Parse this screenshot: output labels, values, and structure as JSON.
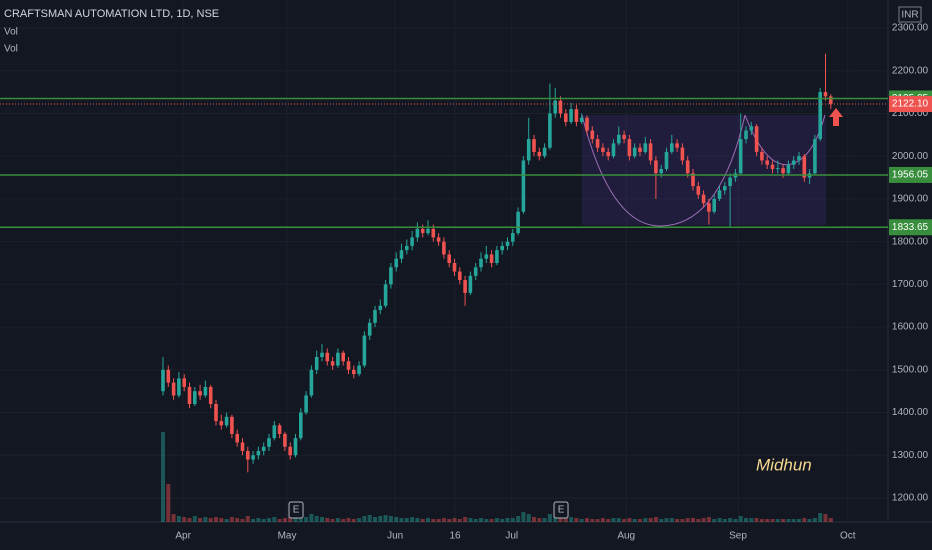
{
  "chart_data": {
    "type": "candlestick",
    "title": "CRAFTSMAN AUTOMATION LTD, 1D, NSE",
    "indicators": [
      "Vol",
      "Vol"
    ],
    "currency": "INR",
    "up_color": "#26a69a",
    "down_color": "#ef5350",
    "level_color": "#388e3c",
    "ylim": [
      1200,
      2300
    ],
    "yticks": [
      {
        "value": 1200,
        "label": "1200.00"
      },
      {
        "value": 1300,
        "label": "1300.00"
      },
      {
        "value": 1400,
        "label": "1400.00"
      },
      {
        "value": 1500,
        "label": "1500.00"
      },
      {
        "value": 1600,
        "label": "1600.00"
      },
      {
        "value": 1700,
        "label": "1700.00"
      },
      {
        "value": 1800,
        "label": "1800.00"
      },
      {
        "value": 1900,
        "label": "1900.00"
      },
      {
        "value": 2000,
        "label": "2000.00"
      },
      {
        "value": 2100,
        "label": "2100.00"
      },
      {
        "value": 2200,
        "label": "2200.00"
      },
      {
        "value": 2300,
        "label": "2300.00"
      }
    ],
    "xticks": [
      {
        "value": 3.8,
        "label": "Apr"
      },
      {
        "value": 23.4,
        "label": "May"
      },
      {
        "value": 43.8,
        "label": "Jun"
      },
      {
        "value": 55.1,
        "label": "16"
      },
      {
        "value": 65.8,
        "label": "Jul"
      },
      {
        "value": 87.4,
        "label": "Aug"
      },
      {
        "value": 108.5,
        "label": "Sep"
      },
      {
        "value": 129.2,
        "label": "Oct"
      }
    ],
    "levels": [
      2135.05,
      1956.05,
      1833.65
    ],
    "last_price": {
      "value": 2122.1,
      "label": "2122.10"
    },
    "annotation": "Midhun",
    "events": [
      {
        "index": 25.1,
        "label": "E"
      },
      {
        "index": 75.1,
        "label": "E"
      }
    ],
    "ohlc": [
      [
        1450,
        1530,
        1440,
        1500
      ],
      [
        1500,
        1510,
        1460,
        1470
      ],
      [
        1470,
        1480,
        1430,
        1440
      ],
      [
        1440,
        1495,
        1435,
        1480
      ],
      [
        1480,
        1490,
        1450,
        1460
      ],
      [
        1460,
        1470,
        1410,
        1420
      ],
      [
        1420,
        1460,
        1415,
        1450
      ],
      [
        1450,
        1465,
        1430,
        1440
      ],
      [
        1440,
        1475,
        1435,
        1460
      ],
      [
        1460,
        1465,
        1410,
        1420
      ],
      [
        1420,
        1430,
        1370,
        1380
      ],
      [
        1380,
        1395,
        1360,
        1370
      ],
      [
        1370,
        1400,
        1365,
        1390
      ],
      [
        1390,
        1395,
        1340,
        1350
      ],
      [
        1350,
        1360,
        1320,
        1330
      ],
      [
        1330,
        1340,
        1300,
        1310
      ],
      [
        1310,
        1320,
        1260,
        1290
      ],
      [
        1290,
        1310,
        1280,
        1300
      ],
      [
        1300,
        1320,
        1290,
        1310
      ],
      [
        1310,
        1330,
        1300,
        1320
      ],
      [
        1320,
        1350,
        1310,
        1340
      ],
      [
        1340,
        1380,
        1335,
        1370
      ],
      [
        1370,
        1375,
        1340,
        1350
      ],
      [
        1350,
        1355,
        1310,
        1320
      ],
      [
        1320,
        1330,
        1290,
        1300
      ],
      [
        1300,
        1350,
        1295,
        1340
      ],
      [
        1340,
        1410,
        1335,
        1400
      ],
      [
        1400,
        1450,
        1395,
        1440
      ],
      [
        1440,
        1510,
        1435,
        1500
      ],
      [
        1500,
        1545,
        1490,
        1530
      ],
      [
        1530,
        1560,
        1520,
        1540
      ],
      [
        1540,
        1550,
        1510,
        1520
      ],
      [
        1520,
        1530,
        1500,
        1510
      ],
      [
        1510,
        1550,
        1505,
        1540
      ],
      [
        1540,
        1545,
        1510,
        1520
      ],
      [
        1520,
        1530,
        1490,
        1500
      ],
      [
        1500,
        1510,
        1480,
        1490
      ],
      [
        1490,
        1520,
        1485,
        1510
      ],
      [
        1510,
        1590,
        1505,
        1580
      ],
      [
        1580,
        1620,
        1570,
        1610
      ],
      [
        1610,
        1650,
        1600,
        1640
      ],
      [
        1640,
        1665,
        1630,
        1650
      ],
      [
        1650,
        1710,
        1645,
        1700
      ],
      [
        1700,
        1750,
        1690,
        1740
      ],
      [
        1740,
        1775,
        1730,
        1760
      ],
      [
        1760,
        1795,
        1750,
        1780
      ],
      [
        1780,
        1805,
        1770,
        1790
      ],
      [
        1790,
        1825,
        1780,
        1810
      ],
      [
        1810,
        1845,
        1800,
        1830
      ],
      [
        1830,
        1840,
        1810,
        1820
      ],
      [
        1820,
        1850,
        1815,
        1830
      ],
      [
        1830,
        1840,
        1800,
        1810
      ],
      [
        1810,
        1820,
        1790,
        1800
      ],
      [
        1800,
        1810,
        1760,
        1770
      ],
      [
        1770,
        1780,
        1740,
        1750
      ],
      [
        1750,
        1760,
        1720,
        1730
      ],
      [
        1730,
        1740,
        1700,
        1710
      ],
      [
        1710,
        1720,
        1650,
        1680
      ],
      [
        1680,
        1730,
        1675,
        1720
      ],
      [
        1720,
        1750,
        1710,
        1740
      ],
      [
        1740,
        1775,
        1730,
        1760
      ],
      [
        1760,
        1790,
        1750,
        1770
      ],
      [
        1770,
        1780,
        1740,
        1750
      ],
      [
        1750,
        1790,
        1745,
        1780
      ],
      [
        1780,
        1800,
        1770,
        1790
      ],
      [
        1790,
        1810,
        1780,
        1800
      ],
      [
        1800,
        1830,
        1790,
        1820
      ],
      [
        1820,
        1880,
        1815,
        1870
      ],
      [
        1870,
        2000,
        1865,
        1990
      ],
      [
        1990,
        2090,
        1980,
        2040
      ],
      [
        2040,
        2050,
        2000,
        2010
      ],
      [
        2010,
        2020,
        1990,
        2000
      ],
      [
        2000,
        2030,
        1995,
        2020
      ],
      [
        2020,
        2170,
        2015,
        2100
      ],
      [
        2100,
        2160,
        2090,
        2130
      ],
      [
        2130,
        2140,
        2090,
        2100
      ],
      [
        2100,
        2110,
        2070,
        2080
      ],
      [
        2080,
        2125,
        2075,
        2110
      ],
      [
        2110,
        2120,
        2070,
        2080
      ],
      [
        2080,
        2100,
        2075,
        2090
      ],
      [
        2090,
        2095,
        2050,
        2060
      ],
      [
        2060,
        2070,
        2030,
        2040
      ],
      [
        2040,
        2050,
        2010,
        2020
      ],
      [
        2020,
        2030,
        2000,
        2010
      ],
      [
        2010,
        2020,
        1990,
        2000
      ],
      [
        2000,
        2040,
        1995,
        2030
      ],
      [
        2030,
        2070,
        2025,
        2050
      ],
      [
        2050,
        2060,
        2030,
        2040
      ],
      [
        2040,
        2050,
        1990,
        2000
      ],
      [
        2000,
        2030,
        1995,
        2020
      ],
      [
        2020,
        2030,
        2000,
        2010
      ],
      [
        2010,
        2045,
        2005,
        2030
      ],
      [
        2030,
        2040,
        1980,
        1990
      ],
      [
        1990,
        2000,
        1900,
        1960
      ],
      [
        1960,
        1980,
        1950,
        1970
      ],
      [
        1970,
        2020,
        1965,
        2010
      ],
      [
        2010,
        2050,
        2005,
        2030
      ],
      [
        2030,
        2040,
        2010,
        2020
      ],
      [
        2020,
        2030,
        1980,
        1990
      ],
      [
        1990,
        2000,
        1950,
        1960
      ],
      [
        1960,
        1970,
        1920,
        1930
      ],
      [
        1930,
        1940,
        1900,
        1910
      ],
      [
        1910,
        1920,
        1880,
        1890
      ],
      [
        1890,
        1900,
        1840,
        1870
      ],
      [
        1870,
        1910,
        1865,
        1900
      ],
      [
        1900,
        1930,
        1895,
        1920
      ],
      [
        1920,
        1940,
        1910,
        1930
      ],
      [
        1930,
        1960,
        1835,
        1950
      ],
      [
        1950,
        1970,
        1940,
        1960
      ],
      [
        1960,
        2100,
        1955,
        2040
      ],
      [
        2040,
        2070,
        2030,
        2060
      ],
      [
        2060,
        2080,
        2050,
        2070
      ],
      [
        2070,
        2075,
        2000,
        2010
      ],
      [
        2010,
        2020,
        1980,
        1990
      ],
      [
        1990,
        2000,
        1970,
        1980
      ],
      [
        1980,
        1990,
        1960,
        1970
      ],
      [
        1970,
        1990,
        1960,
        1972
      ],
      [
        1972,
        1980,
        1950,
        1960
      ],
      [
        1960,
        1990,
        1955,
        1980
      ],
      [
        1980,
        2000,
        1970,
        1990
      ],
      [
        1990,
        2010,
        1980,
        2000
      ],
      [
        2000,
        2005,
        1940,
        1950
      ],
      [
        1950,
        1970,
        1935,
        1960
      ],
      [
        1960,
        2050,
        1955,
        2040
      ],
      [
        2040,
        2160,
        2035,
        2150
      ],
      [
        2150,
        2240,
        2130,
        2140
      ],
      [
        2140,
        2145,
        2110,
        2122
      ]
    ],
    "volume": [
      90,
      38,
      8,
      6,
      5,
      4,
      6,
      4,
      5,
      4,
      5,
      4,
      3,
      5,
      4,
      3,
      6,
      3,
      4,
      3,
      4,
      5,
      3,
      4,
      5,
      4,
      6,
      5,
      8,
      6,
      5,
      4,
      3,
      4,
      3,
      4,
      3,
      4,
      6,
      7,
      5,
      6,
      7,
      6,
      5,
      4,
      4,
      5,
      4,
      3,
      4,
      3,
      3,
      4,
      3,
      4,
      3,
      5,
      4,
      3,
      4,
      3,
      3,
      4,
      3,
      4,
      4,
      6,
      10,
      8,
      5,
      4,
      4,
      8,
      6,
      4,
      4,
      5,
      4,
      3,
      4,
      3,
      3,
      4,
      3,
      4,
      4,
      3,
      4,
      3,
      3,
      4,
      4,
      5,
      3,
      4,
      4,
      3,
      3,
      4,
      4,
      3,
      4,
      5,
      3,
      4,
      3,
      4,
      3,
      6,
      4,
      4,
      4,
      3,
      3,
      3,
      3,
      3,
      3,
      3,
      3,
      4,
      3,
      4,
      9,
      8,
      4
    ],
    "y2lim": [
      0,
      100
    ]
  }
}
